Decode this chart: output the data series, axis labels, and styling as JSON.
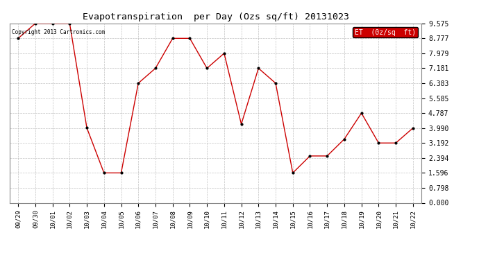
{
  "title": "Evapotranspiration  per Day (Ozs sq/ft) 20131023",
  "dates": [
    "09/29",
    "09/30",
    "10/01",
    "10/02",
    "10/03",
    "10/04",
    "10/05",
    "10/06",
    "10/07",
    "10/08",
    "10/09",
    "10/10",
    "10/11",
    "10/12",
    "10/13",
    "10/14",
    "10/15",
    "10/16",
    "10/17",
    "10/18",
    "10/19",
    "10/20",
    "10/21",
    "10/22"
  ],
  "values": [
    8.777,
    9.575,
    9.575,
    9.575,
    4.0,
    1.596,
    1.596,
    6.383,
    7.181,
    8.777,
    8.777,
    7.181,
    7.979,
    4.2,
    7.181,
    6.383,
    1.596,
    2.5,
    2.5,
    3.4,
    4.787,
    3.192,
    3.192,
    3.99
  ],
  "line_color": "#cc0000",
  "marker_color": "#000000",
  "legend_label": "ET  (0z/sq  ft)",
  "legend_bg": "#cc0000",
  "legend_text_color": "#ffffff",
  "copyright_text": "Copyright 2013 Cartronics.com",
  "yticks": [
    0.0,
    0.798,
    1.596,
    2.394,
    3.192,
    3.99,
    4.787,
    5.585,
    6.383,
    7.181,
    7.979,
    8.777,
    9.575
  ],
  "ylim": [
    0.0,
    9.575
  ],
  "background_color": "#ffffff",
  "grid_color": "#bbbbbb"
}
